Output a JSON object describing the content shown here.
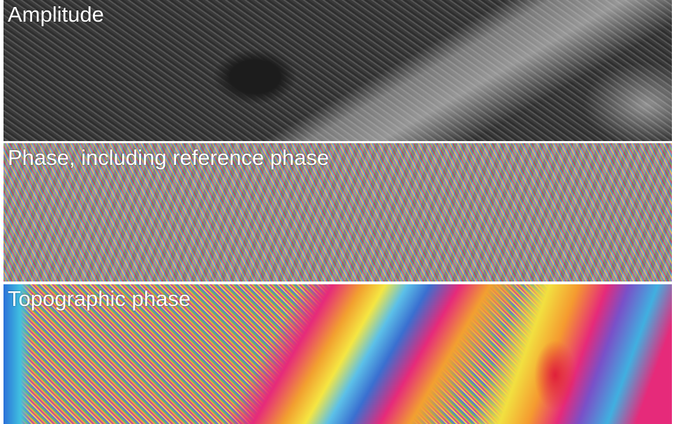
{
  "panels": [
    {
      "label": "Amplitude"
    },
    {
      "label": "Phase, including reference phase"
    },
    {
      "label": "Topographic phase"
    }
  ]
}
